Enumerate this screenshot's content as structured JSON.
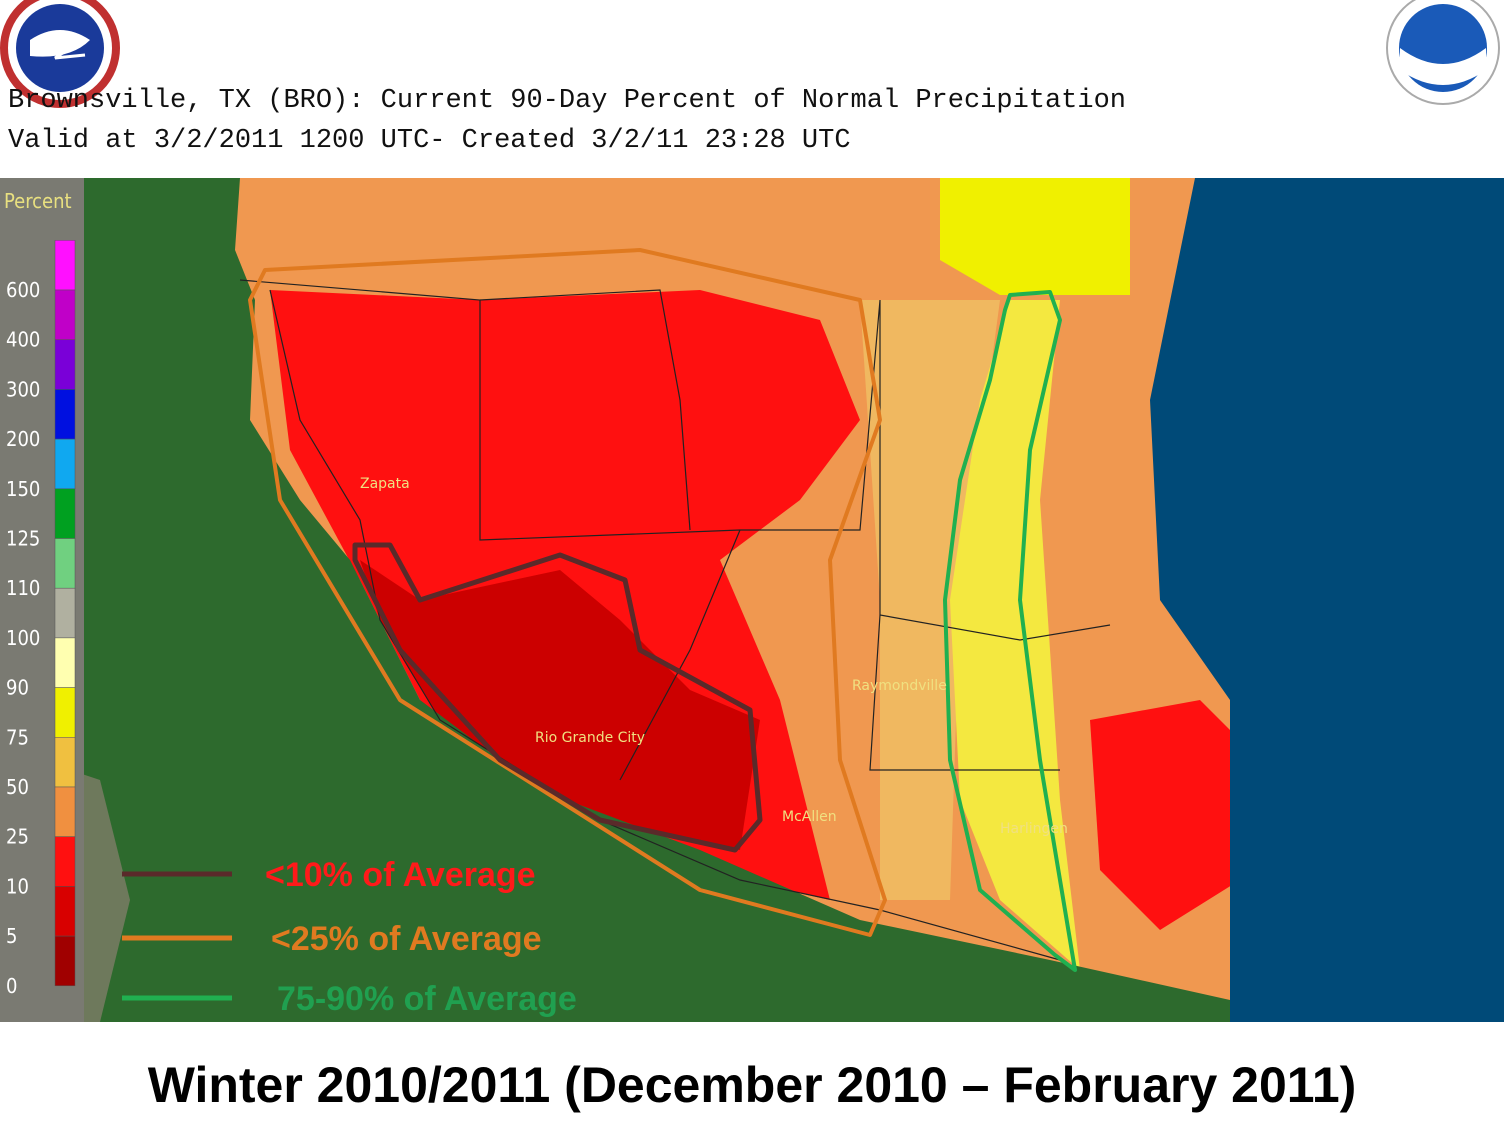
{
  "header": {
    "title": "Brownsville, TX (BRO): Current 90-Day Percent of Normal Precipitation",
    "subtitle": "Valid at 3/2/2011 1200 UTC- Created 3/2/11 23:28 UTC"
  },
  "scale": {
    "title": "Percent",
    "levels": [
      {
        "label": "600",
        "color": "#ff10ff"
      },
      {
        "label": "400",
        "color": "#c000c8"
      },
      {
        "label": "300",
        "color": "#7a00d8"
      },
      {
        "label": "200",
        "color": "#0010e0"
      },
      {
        "label": "150",
        "color": "#10a8f0"
      },
      {
        "label": "125",
        "color": "#00a020"
      },
      {
        "label": "110",
        "color": "#70d080"
      },
      {
        "label": "100",
        "color": "#b0b0a0"
      },
      {
        "label": "90",
        "color": "#ffffb0"
      },
      {
        "label": "75",
        "color": "#f0f000"
      },
      {
        "label": "50",
        "color": "#f0c040"
      },
      {
        "label": "25",
        "color": "#f09040"
      },
      {
        "label": "10",
        "color": "#ff1010"
      },
      {
        "label": "5",
        "color": "#d80000"
      },
      {
        "label": "0",
        "color": "#a00000"
      }
    ]
  },
  "cities": [
    "Zapata",
    "Rio Grande City",
    "McAllen",
    "Raymondville",
    "Harlingen"
  ],
  "legend": [
    {
      "label": "<10% of Average",
      "line_color": "#5a2a2a",
      "text_color": "#ff1a1a"
    },
    {
      "label": "<25% of Average",
      "line_color": "#e07a20",
      "text_color": "#e07a20"
    },
    {
      "label": "75-90% of Average",
      "line_color": "#20b050",
      "text_color": "#20a050"
    }
  ],
  "caption": "Winter 2010/2011 (December  2010 – February 2011)"
}
